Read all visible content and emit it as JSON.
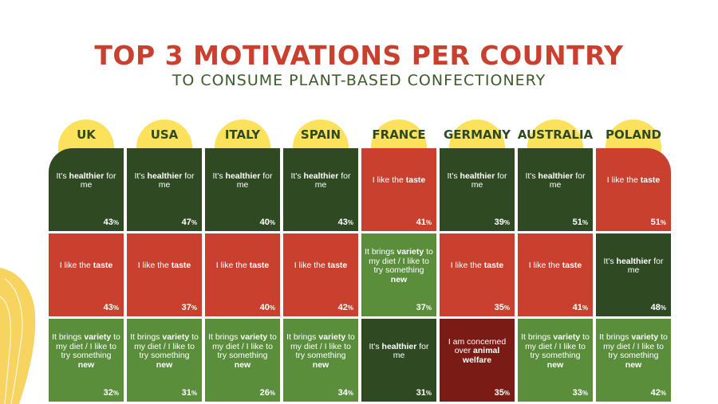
{
  "title": "TOP 3 MOTIVATIONS PER COUNTRY",
  "subtitle": "TO CONSUME PLANT-BASED CONFECTIONERY",
  "colors": {
    "title": "#c9402f",
    "subtitle": "#3d5a2a",
    "circle": "#fbe15c",
    "deco": "#f7d460",
    "healthier": "#2f4a23",
    "taste": "#c9402f",
    "variety": "#5a8e3b",
    "animal": "#7b1b15"
  },
  "chart_data": {
    "type": "table",
    "countries": [
      "UK",
      "USA",
      "ITALY",
      "SPAIN",
      "FRANCE",
      "GERMANY",
      "AUSTRALIA",
      "POLAND"
    ],
    "motivations": {
      "healthier": {
        "pre": "It's ",
        "bold": "healthier",
        "post": " for me"
      },
      "taste": {
        "pre": "I like the ",
        "bold": "taste",
        "post": ""
      },
      "variety": {
        "pre": "It brings ",
        "bold": "variety",
        "post": " to my diet / I like to try something ",
        "bold2": "new"
      },
      "animal": {
        "pre": "I am concerned over ",
        "bold": "animal welfare",
        "post": ""
      }
    },
    "rows": [
      [
        {
          "m": "healthier",
          "value": 43
        },
        {
          "m": "healthier",
          "value": 47
        },
        {
          "m": "healthier",
          "value": 40
        },
        {
          "m": "healthier",
          "value": 43
        },
        {
          "m": "taste",
          "value": 41
        },
        {
          "m": "healthier",
          "value": 39
        },
        {
          "m": "healthier",
          "value": 51
        },
        {
          "m": "taste",
          "value": 51
        }
      ],
      [
        {
          "m": "taste",
          "value": 43
        },
        {
          "m": "taste",
          "value": 37
        },
        {
          "m": "taste",
          "value": 40
        },
        {
          "m": "taste",
          "value": 42
        },
        {
          "m": "variety",
          "value": 37
        },
        {
          "m": "taste",
          "value": 35
        },
        {
          "m": "taste",
          "value": 41
        },
        {
          "m": "healthier",
          "value": 48
        }
      ],
      [
        {
          "m": "variety",
          "value": 32
        },
        {
          "m": "variety",
          "value": 31
        },
        {
          "m": "variety",
          "value": 26
        },
        {
          "m": "variety",
          "value": 34
        },
        {
          "m": "healthier",
          "value": 31
        },
        {
          "m": "animal",
          "value": 35
        },
        {
          "m": "variety",
          "value": 33
        },
        {
          "m": "variety",
          "value": 42
        }
      ]
    ],
    "unit": "%"
  }
}
